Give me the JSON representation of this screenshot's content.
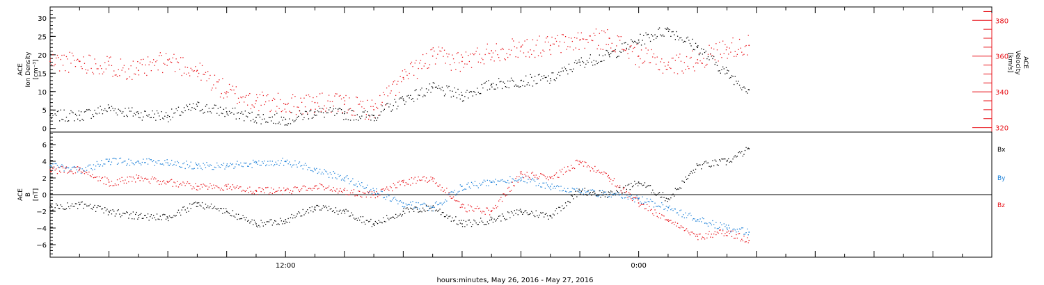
{
  "colors": {
    "black": "#000000",
    "red": "#e8141b",
    "blue": "#1a7fd8"
  },
  "xlabel": "hours:minutes, May 26, 2016 - May 27, 2016",
  "chart_data": [
    {
      "type": "scatter",
      "title": "",
      "time_axis": {
        "start": "2016-05-26 04:00",
        "end": "2016-05-27 12:00",
        "tick_labels": [
          "12:00",
          "0:00"
        ]
      },
      "left_axis": {
        "label_lines": [
          "ACE",
          "Ion Density",
          "[cm⁻³]"
        ],
        "range": [
          -1,
          33
        ],
        "ticks": [
          0,
          5,
          10,
          15,
          20,
          25,
          30
        ]
      },
      "right_axis": {
        "label_lines": [
          "ACE",
          "Velocity",
          "[km/s]"
        ],
        "range": [
          317.5,
          387.5
        ],
        "ticks": [
          320,
          340,
          360,
          380
        ],
        "color": "#e8141b"
      },
      "series": [
        {
          "name": "",
          "axis": "left",
          "color": "#000000",
          "x": [
            "2016-05-26 04:00",
            "2016-05-26 05:00",
            "2016-05-26 06:00",
            "2016-05-26 07:00",
            "2016-05-26 08:00",
            "2016-05-26 09:00",
            "2016-05-26 10:00",
            "2016-05-26 11:00",
            "2016-05-26 12:00",
            "2016-05-26 13:00",
            "2016-05-26 14:00",
            "2016-05-26 15:00",
            "2016-05-26 16:00",
            "2016-05-26 17:00",
            "2016-05-26 18:00",
            "2016-05-26 19:00",
            "2016-05-26 20:00",
            "2016-05-26 21:00",
            "2016-05-26 22:00",
            "2016-05-26 23:00",
            "2016-05-27 00:00",
            "2016-05-27 01:00",
            "2016-05-27 02:00",
            "2016-05-27 03:00",
            "2016-05-27 03:45"
          ],
          "values": [
            3.5,
            3.6,
            5.5,
            4.0,
            3.5,
            6.0,
            4.5,
            3.0,
            2.5,
            4.5,
            4.0,
            3.5,
            8.0,
            11.0,
            9.0,
            12.0,
            13.0,
            13.5,
            18.0,
            20.0,
            24.0,
            27.0,
            22.0,
            15.0,
            10.5
          ]
        },
        {
          "name": "",
          "axis": "right",
          "color": "#e8141b",
          "x": [
            "2016-05-26 04:00",
            "2016-05-26 05:00",
            "2016-05-26 06:00",
            "2016-05-26 07:00",
            "2016-05-26 08:00",
            "2016-05-26 09:00",
            "2016-05-26 10:00",
            "2016-05-26 11:00",
            "2016-05-26 12:00",
            "2016-05-26 13:00",
            "2016-05-26 14:00",
            "2016-05-26 15:00",
            "2016-05-26 16:00",
            "2016-05-26 17:00",
            "2016-05-26 18:00",
            "2016-05-26 19:00",
            "2016-05-26 20:00",
            "2016-05-26 21:00",
            "2016-05-26 22:00",
            "2016-05-26 23:00",
            "2016-05-27 00:00",
            "2016-05-27 01:00",
            "2016-05-27 02:00",
            "2016-05-27 03:00",
            "2016-05-27 03:45"
          ],
          "values": [
            357,
            357,
            355,
            352,
            358,
            352,
            340,
            335,
            333,
            334,
            333,
            330,
            348,
            360,
            357,
            363,
            365,
            366,
            369,
            370,
            360,
            355,
            358,
            365,
            366
          ]
        }
      ]
    },
    {
      "type": "scatter",
      "title": "",
      "time_axis": {
        "start": "2016-05-26 04:00",
        "end": "2016-05-27 12:00",
        "tick_labels": [
          "12:00",
          "0:00"
        ]
      },
      "left_axis": {
        "label_lines": [
          "ACE",
          "B",
          "[nT]"
        ],
        "range": [
          -7.5,
          7.5
        ],
        "ticks": [
          -6,
          -4,
          -2,
          0,
          2,
          4,
          6
        ],
        "zero_line": true
      },
      "legend": {
        "placement": "right",
        "entries": [
          "Bx",
          "By",
          "Bz"
        ]
      },
      "series": [
        {
          "name": "Bx",
          "axis": "left",
          "color": "#000000",
          "x": [
            "2016-05-26 04:00",
            "2016-05-26 05:00",
            "2016-05-26 06:00",
            "2016-05-26 07:00",
            "2016-05-26 08:00",
            "2016-05-26 09:00",
            "2016-05-26 10:00",
            "2016-05-26 11:00",
            "2016-05-26 12:00",
            "2016-05-26 13:00",
            "2016-05-26 14:00",
            "2016-05-26 15:00",
            "2016-05-26 16:00",
            "2016-05-26 17:00",
            "2016-05-26 18:00",
            "2016-05-26 19:00",
            "2016-05-26 20:00",
            "2016-05-26 21:00",
            "2016-05-26 22:00",
            "2016-05-26 23:00",
            "2016-05-27 00:00",
            "2016-05-27 01:00",
            "2016-05-27 02:00",
            "2016-05-27 03:00",
            "2016-05-27 03:45"
          ],
          "values": [
            -1.5,
            -1.2,
            -2.0,
            -2.5,
            -2.8,
            -1.0,
            -2.0,
            -3.5,
            -3.0,
            -1.5,
            -2.0,
            -3.5,
            -2.0,
            -1.5,
            -3.5,
            -3.0,
            -2.0,
            -2.5,
            0.5,
            0.0,
            1.5,
            -0.5,
            3.5,
            4.0,
            5.5
          ]
        },
        {
          "name": "By",
          "axis": "left",
          "color": "#1a7fd8",
          "x": [
            "2016-05-26 04:00",
            "2016-05-26 05:00",
            "2016-05-26 06:00",
            "2016-05-26 07:00",
            "2016-05-26 08:00",
            "2016-05-26 09:00",
            "2016-05-26 10:00",
            "2016-05-26 11:00",
            "2016-05-26 12:00",
            "2016-05-26 13:00",
            "2016-05-26 14:00",
            "2016-05-26 15:00",
            "2016-05-26 16:00",
            "2016-05-26 17:00",
            "2016-05-26 18:00",
            "2016-05-26 19:00",
            "2016-05-26 20:00",
            "2016-05-26 21:00",
            "2016-05-26 22:00",
            "2016-05-27 00:00",
            "2016-05-27 01:00",
            "2016-05-27 02:00",
            "2016-05-27 03:00",
            "2016-05-27 03:45"
          ],
          "values": [
            3.5,
            3.0,
            4.0,
            4.0,
            3.8,
            3.5,
            3.5,
            3.8,
            4.0,
            3.0,
            2.0,
            0.5,
            -1.0,
            -1.5,
            1.0,
            1.5,
            2.0,
            1.0,
            0.5,
            -0.5,
            -1.5,
            -3.0,
            -4.0,
            -4.5
          ]
        },
        {
          "name": "Bz",
          "axis": "left",
          "color": "#e8141b",
          "x": [
            "2016-05-26 04:00",
            "2016-05-26 05:00",
            "2016-05-26 06:00",
            "2016-05-26 07:00",
            "2016-05-26 08:00",
            "2016-05-26 09:00",
            "2016-05-26 10:00",
            "2016-05-26 11:00",
            "2016-05-26 12:00",
            "2016-05-26 13:00",
            "2016-05-26 14:00",
            "2016-05-26 15:00",
            "2016-05-26 16:00",
            "2016-05-26 17:00",
            "2016-05-26 18:00",
            "2016-05-26 19:00",
            "2016-05-26 20:00",
            "2016-05-26 21:00",
            "2016-05-26 22:00",
            "2016-05-26 23:00",
            "2016-05-27 00:00",
            "2016-05-27 01:00",
            "2016-05-27 02:00",
            "2016-05-27 03:00",
            "2016-05-27 03:45"
          ],
          "values": [
            3.0,
            3.0,
            1.5,
            2.0,
            1.5,
            1.0,
            1.0,
            0.5,
            0.5,
            1.0,
            0.5,
            0.0,
            1.5,
            2.0,
            -1.5,
            -2.0,
            2.5,
            2.0,
            4.0,
            2.0,
            -1.0,
            -3.0,
            -5.0,
            -4.5,
            -5.5
          ]
        }
      ]
    }
  ]
}
